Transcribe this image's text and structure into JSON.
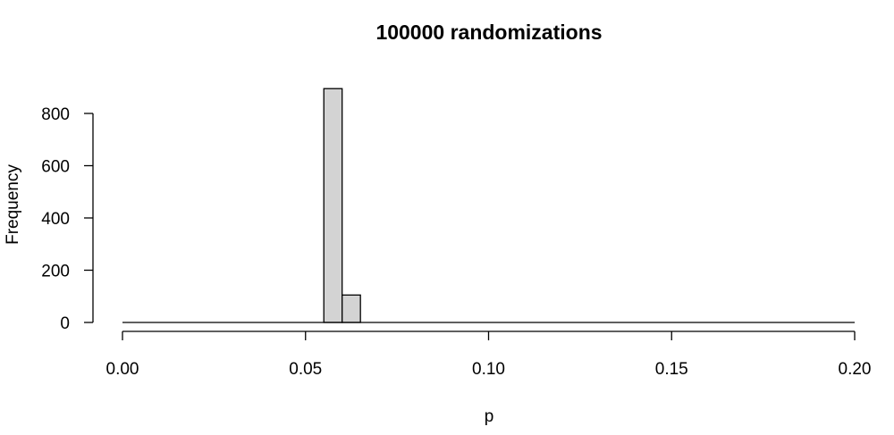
{
  "chart_data": {
    "type": "bar",
    "title": "100000 randomizations",
    "xlabel": "p",
    "ylabel": "Frequency",
    "xlim": [
      0,
      0.2
    ],
    "ylim": [
      0,
      900
    ],
    "x_ticks": [
      0,
      0.05,
      0.1,
      0.15,
      0.2
    ],
    "x_tick_labels": [
      "0.00",
      "0.05",
      "0.10",
      "0.15",
      "0.20"
    ],
    "y_ticks": [
      0,
      200,
      400,
      600,
      800
    ],
    "y_tick_labels": [
      "0",
      "200",
      "400",
      "600",
      "800"
    ],
    "bin_width": 0.005,
    "bins": [
      {
        "start": 0.055,
        "end": 0.06,
        "value": 895
      },
      {
        "start": 0.06,
        "end": 0.065,
        "value": 105
      }
    ],
    "baseline_range": [
      0,
      0.2
    ],
    "bar_color": "#d3d3d3",
    "grid": false,
    "legend": "none"
  }
}
